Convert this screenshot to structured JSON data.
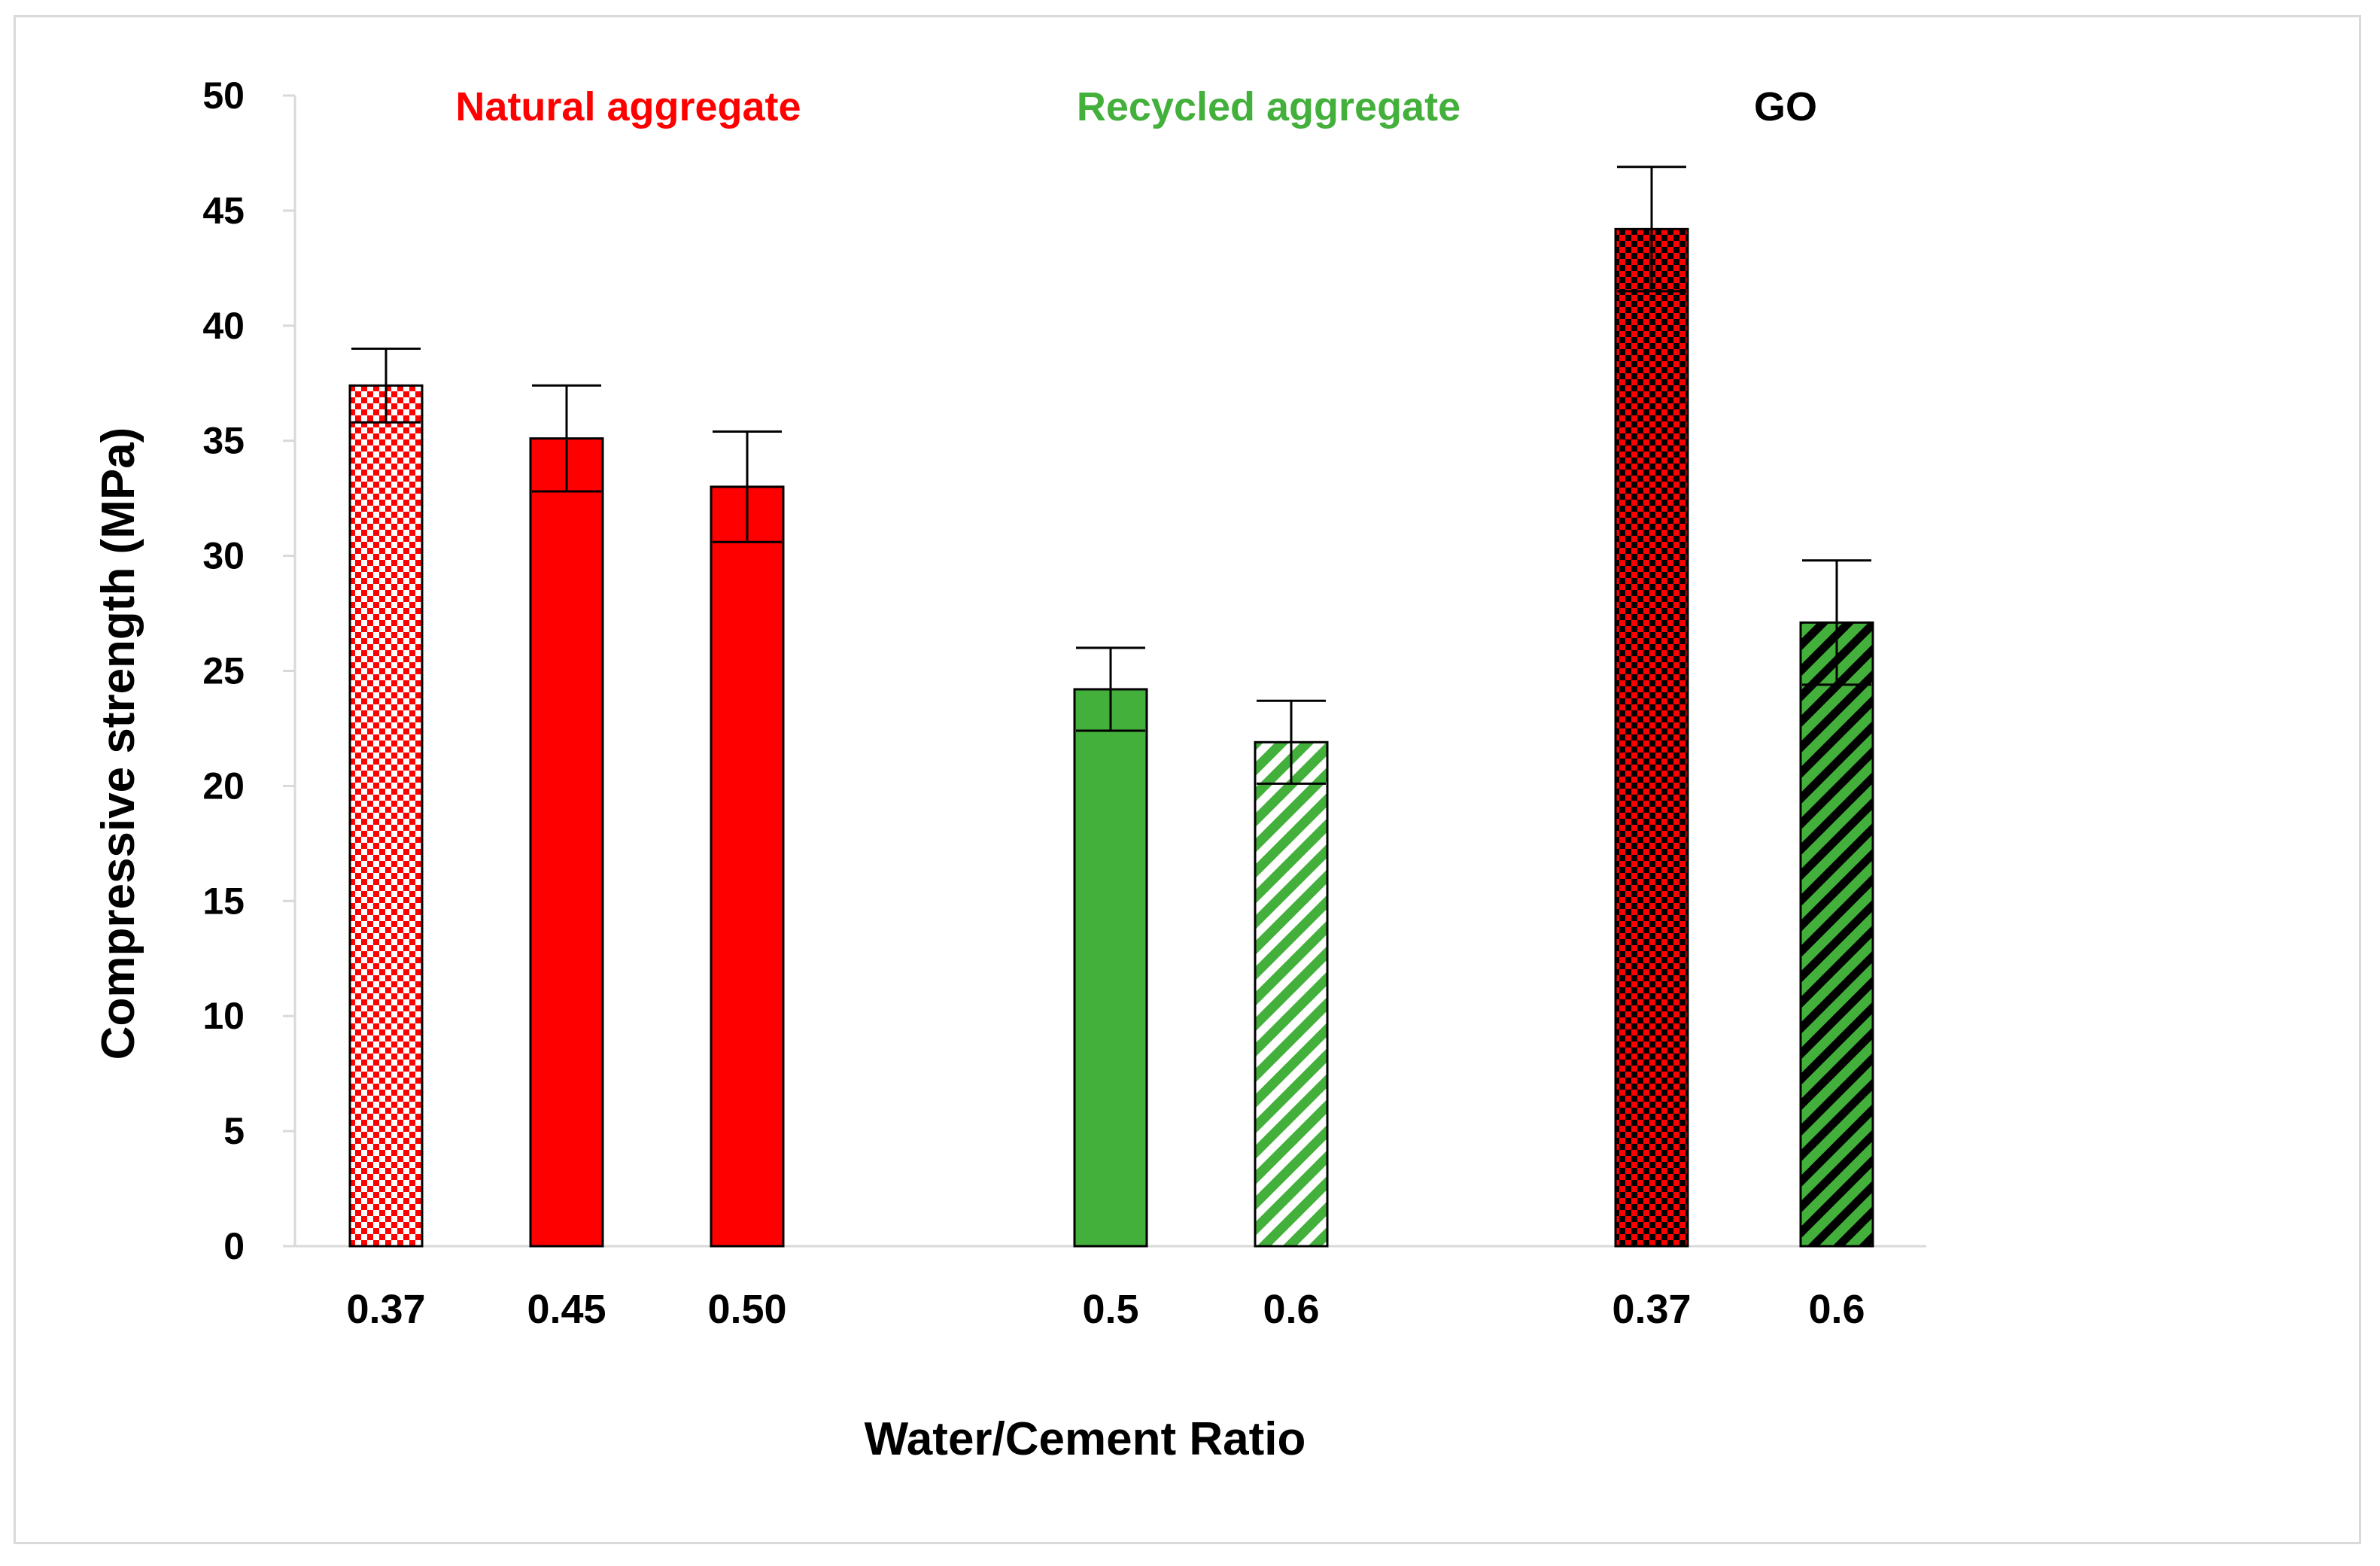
{
  "chart_data": {
    "type": "bar",
    "title": "",
    "xlabel": "Water/Cement Ratio",
    "ylabel": "Compressive strength (MPa)",
    "ylim": [
      0,
      50
    ],
    "yticks": [
      0,
      5,
      10,
      15,
      20,
      25,
      30,
      35,
      40,
      45,
      50
    ],
    "grid": false,
    "groups": [
      {
        "name": "Natural aggregate",
        "color": "#ff0000"
      },
      {
        "name": "Recycled aggregate",
        "color": "#44b03c"
      },
      {
        "name": "GO",
        "color": "#000000"
      }
    ],
    "bars": [
      {
        "group": "Natural aggregate",
        "category": "0.37",
        "value": 37.4,
        "error": 1.6,
        "fill": "checker-red-white"
      },
      {
        "group": "Natural aggregate",
        "category": "0.45",
        "value": 35.1,
        "error": 2.3,
        "fill": "solid-red"
      },
      {
        "group": "Natural aggregate",
        "category": "0.50",
        "value": 33.0,
        "error": 2.4,
        "fill": "solid-red"
      },
      {
        "group": "Recycled aggregate",
        "category": "0.5",
        "value": 24.2,
        "error": 1.8,
        "fill": "solid-green"
      },
      {
        "group": "Recycled aggregate",
        "category": "0.6",
        "value": 21.9,
        "error": 1.8,
        "fill": "stripe-green-white"
      },
      {
        "group": "GO",
        "category": "0.37",
        "value": 44.2,
        "error": 2.7,
        "fill": "checker-red-black"
      },
      {
        "group": "GO",
        "category": "0.6",
        "value": 27.1,
        "error": 2.7,
        "fill": "stripe-green-black"
      }
    ]
  }
}
